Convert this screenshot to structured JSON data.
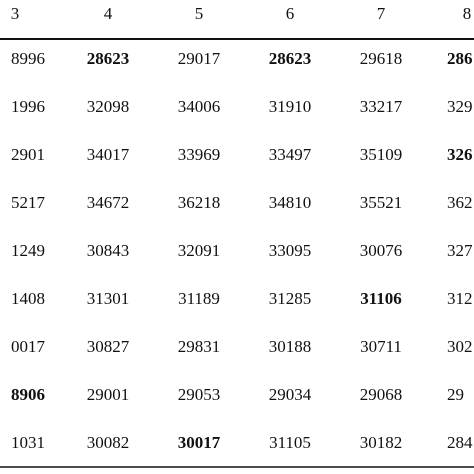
{
  "table": {
    "header": [
      "3",
      "4",
      "5",
      "6",
      "7",
      "8"
    ],
    "rows": [
      [
        "8996",
        "28623",
        "29017",
        "28623",
        "29618",
        "286"
      ],
      [
        "1996",
        "32098",
        "34006",
        "31910",
        "33217",
        "329"
      ],
      [
        "2901",
        "34017",
        "33969",
        "33497",
        "35109",
        "326"
      ],
      [
        "5217",
        "34672",
        "36218",
        "34810",
        "35521",
        "362"
      ],
      [
        "1249",
        "30843",
        "32091",
        "33095",
        "30076",
        "327"
      ],
      [
        "1408",
        "31301",
        "31189",
        "31285",
        "31106",
        "312"
      ],
      [
        "0017",
        "30827",
        "29831",
        "30188",
        "30711",
        "302"
      ],
      [
        "8906",
        "29001",
        "29053",
        "29034",
        "29068",
        "29"
      ],
      [
        "1031",
        "30082",
        "30017",
        "31105",
        "30182",
        "284"
      ]
    ],
    "bold_cells": [
      [
        0,
        1
      ],
      [
        0,
        3
      ],
      [
        0,
        5
      ],
      [
        2,
        5
      ],
      [
        5,
        4
      ],
      [
        7,
        0
      ],
      [
        8,
        2
      ]
    ]
  }
}
